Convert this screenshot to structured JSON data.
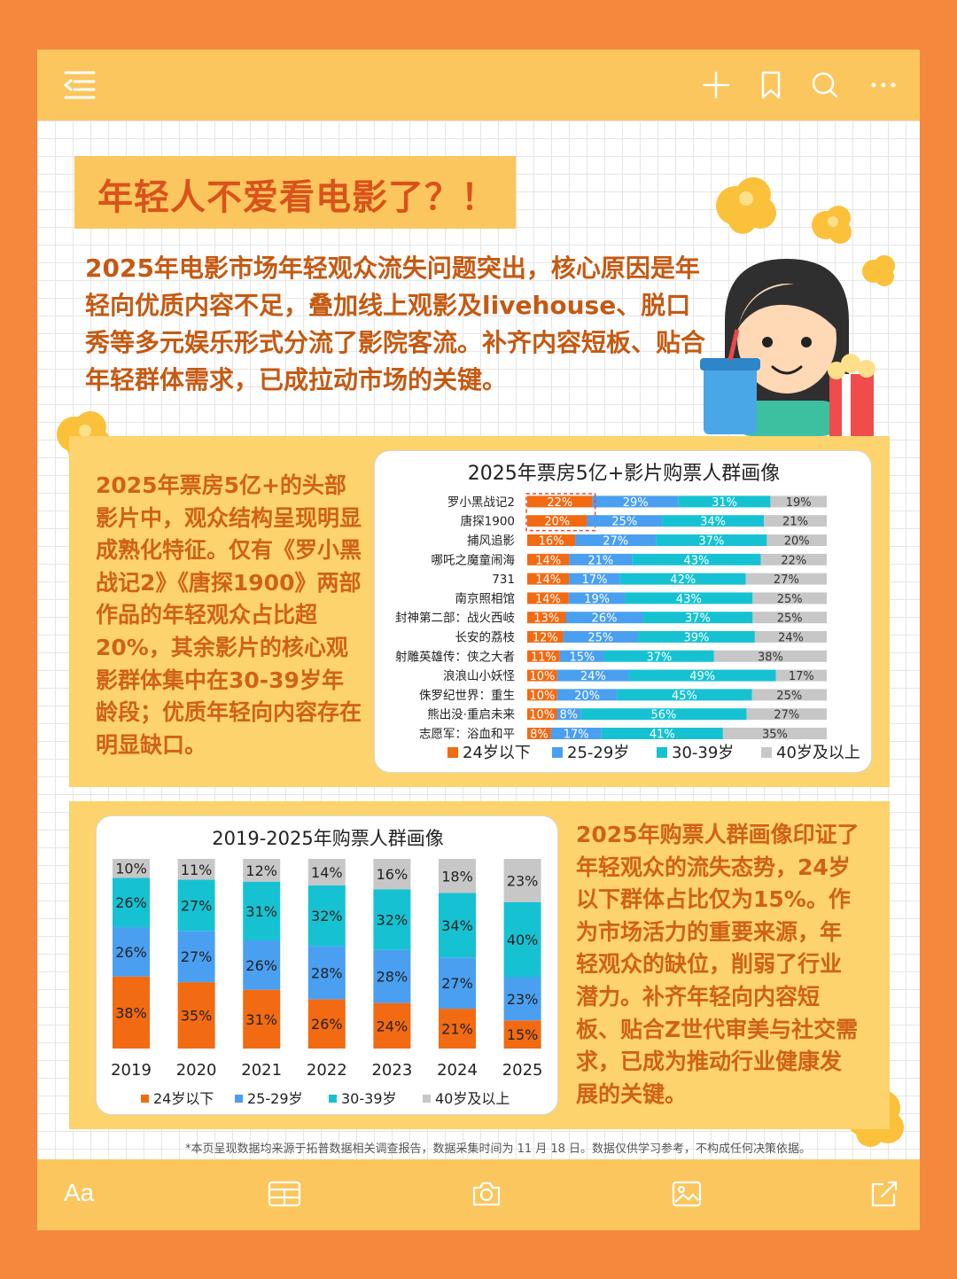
{
  "title": "年轻人不爱看电影了？！",
  "intro": "2025年电影市场年轻观众流失问题突出，核心原因是年轻向优质内容不足，叠加线上观影及livehouse、脱口秀等多元娱乐形式分流了影院客流。补齐内容短板、贴合年轻群体需求，已成拉动市场的关键。",
  "section1_text": "2025年票房5亿+的头部影片中，观众结构呈现明显成熟化特征。仅有《罗小黑战记2》《唐探1900》两部作品的年轻观众占比超20%，其余影片的核心观影群体集中在30-39岁年龄段；优质年轻向内容存在明显缺口。",
  "section2_text": "2025年购票人群画像印证了年轻观众的流失态势，24岁以下群体占比仅为15%。作为市场活力的重要来源，年轻观众的缺位，削弱了行业潜力。补齐年轻向内容短板、贴合Z世代审美与社交需求，已成为推动行业健康发展的关键。",
  "footnote": "*本页呈现数据均来源于拓普数据相关调查报告，数据采集时间为 11 月 18 日。数据仅供学习参考，不构成任何决策依据。",
  "toolbar": {
    "font_label": "Aa"
  },
  "icons": {
    "top": [
      "menu-icon",
      "plus-icon",
      "bookmark-icon",
      "search-icon",
      "more-icon"
    ],
    "bottom": [
      "font-icon",
      "table-icon",
      "camera-icon",
      "image-icon",
      "edit-icon"
    ]
  },
  "colors": {
    "under24": "#f26a12",
    "age25_29": "#4a9ff0",
    "age30_39": "#16c2d2",
    "age40plus": "#c7c7c7",
    "accent_text": "#d06218",
    "section_bg": "#fcd36c"
  },
  "chart_data": [
    {
      "type": "bar",
      "orientation": "horizontal",
      "stacked": "percent",
      "title": "2025年票房5亿+影片购票人群画像",
      "categories": [
        "罗小黑战记2",
        "唐探1900",
        "捕风追影",
        "哪吒之魔童闹海",
        "731",
        "南京照相馆",
        "封神第二部：战火西岐",
        "长安的荔枝",
        "射雕英雄传：侠之大者",
        "浪浪山小妖怪",
        "侏罗纪世界：重生",
        "熊出没·重启未来",
        "志愿军：浴血和平"
      ],
      "series": [
        {
          "name": "24岁以下",
          "values": [
            22,
            20,
            16,
            14,
            14,
            14,
            13,
            12,
            11,
            10,
            10,
            10,
            8
          ]
        },
        {
          "name": "25-29岁",
          "values": [
            29,
            25,
            27,
            21,
            17,
            19,
            26,
            25,
            15,
            24,
            20,
            8,
            17
          ]
        },
        {
          "name": "30-39岁",
          "values": [
            31,
            34,
            37,
            43,
            42,
            43,
            37,
            39,
            37,
            49,
            45,
            56,
            41
          ]
        },
        {
          "name": "40岁及以上",
          "values": [
            19,
            21,
            20,
            22,
            27,
            25,
            25,
            24,
            38,
            17,
            25,
            27,
            35
          ]
        }
      ],
      "highlighted_categories": [
        "罗小黑战记2",
        "唐探1900"
      ],
      "legend": "bottom",
      "unit": "%"
    },
    {
      "type": "bar",
      "orientation": "vertical",
      "stacked": "percent",
      "title": "2019-2025年购票人群画像",
      "categories": [
        "2019",
        "2020",
        "2021",
        "2022",
        "2023",
        "2024",
        "2025"
      ],
      "series": [
        {
          "name": "24岁以下",
          "values": [
            38,
            35,
            31,
            26,
            24,
            21,
            15
          ]
        },
        {
          "name": "25-29岁",
          "values": [
            26,
            27,
            26,
            28,
            28,
            27,
            23
          ]
        },
        {
          "name": "30-39岁",
          "values": [
            26,
            27,
            31,
            32,
            32,
            34,
            40
          ]
        },
        {
          "name": "40岁及以上",
          "values": [
            10,
            11,
            12,
            14,
            16,
            18,
            23
          ]
        }
      ],
      "legend": "bottom",
      "unit": "%"
    }
  ]
}
